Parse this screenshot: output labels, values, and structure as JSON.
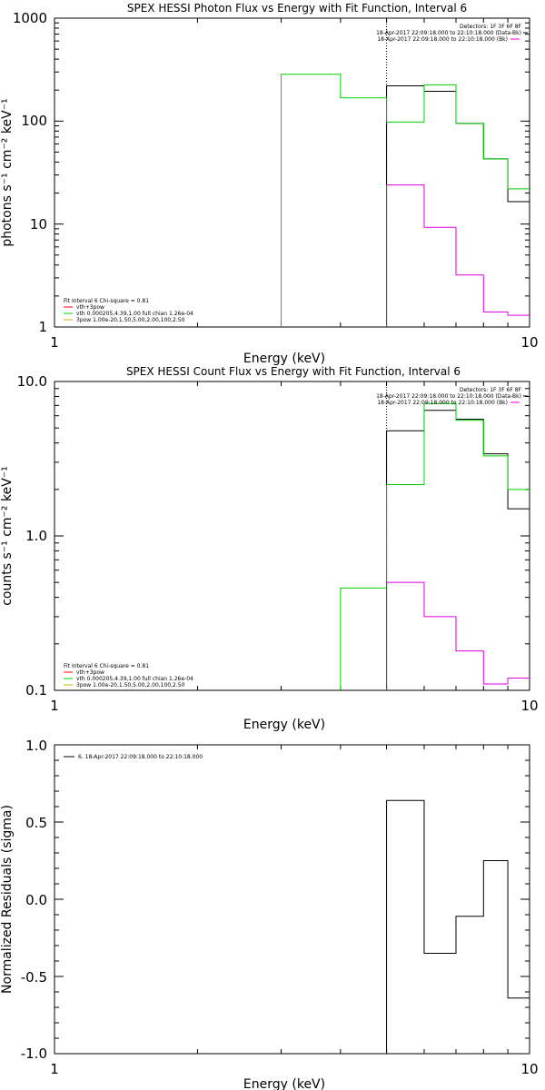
{
  "chart_data": [
    {
      "type": "line",
      "id": "photon",
      "title": "SPEX HESSI Photon Flux vs Energy with Fit Function, Interval 6",
      "xlabel": "Energy (keV)",
      "ylabel": "photons s⁻¹ cm⁻² keV⁻¹",
      "xscale": "log",
      "yscale": "log",
      "xlim": [
        1,
        10
      ],
      "ylim": [
        1,
        1000
      ],
      "xticks": [
        "1",
        "10"
      ],
      "yticks": [
        "1",
        "10",
        "100",
        "1000"
      ],
      "bin_edges": [
        3,
        4,
        5,
        6,
        7,
        8,
        9,
        10
      ],
      "vline": 5,
      "series": [
        {
          "color": "#000000",
          "values": [
            null,
            null,
            220,
            195,
            95,
            43,
            16.5
          ]
        },
        {
          "color": "#00d000",
          "values": [
            285,
            168,
            98,
            225,
            95,
            43,
            22
          ]
        },
        {
          "color": "#e000e0",
          "values": [
            null,
            null,
            24,
            9.3,
            3.2,
            1.4,
            1.3
          ]
        }
      ],
      "legend": [
        {
          "text": "Fit Interval 6   Chi-square = 0.81",
          "color": "#000000"
        },
        {
          "text": "vth+3pow",
          "color": "#ff0000"
        },
        {
          "text": "vth 0.000205,4.39,1.00   full chian 1.26e-04",
          "color": "#00d000"
        },
        {
          "text": "3pow 1.00e-20,1.50,5.00,2.00,100,2.50",
          "color": "#d0b000"
        }
      ],
      "info": [
        {
          "text": "Detectors: 1F 3F 6F 8F",
          "color": "#000000"
        },
        {
          "text": "18-Apr-2017 22:09:18.000 to 22:10:18.000 (Data-Bk)",
          "color": "#000000"
        },
        {
          "text": "18-Apr-2017 22:09:18.000 to 22:10:18.000 (Bk)",
          "color": "#e000e0"
        }
      ]
    },
    {
      "type": "line",
      "id": "count",
      "title": "SPEX HESSI Count Flux vs Energy with Fit Function, Interval 6",
      "xlabel": "Energy (keV)",
      "ylabel": "counts s⁻¹ cm⁻² keV⁻¹",
      "xscale": "log",
      "yscale": "log",
      "xlim": [
        1,
        10
      ],
      "ylim": [
        0.1,
        10
      ],
      "xticks": [
        "1",
        "10"
      ],
      "yticks": [
        "0.1",
        "1.0",
        "10.0"
      ],
      "bin_edges": [
        3,
        4,
        5,
        6,
        7,
        8,
        9,
        10
      ],
      "vline": 5,
      "series": [
        {
          "color": "#000000",
          "values": [
            null,
            null,
            4.8,
            6.5,
            5.7,
            3.4,
            1.5
          ]
        },
        {
          "color": "#00d000",
          "values": [
            null,
            0.46,
            2.15,
            7.2,
            5.6,
            3.3,
            2.0
          ]
        },
        {
          "color": "#e000e0",
          "values": [
            null,
            null,
            0.5,
            0.3,
            0.18,
            0.11,
            0.12
          ]
        }
      ],
      "legend": [
        {
          "text": "Fit Interval 6   Chi-square = 0.81",
          "color": "#000000"
        },
        {
          "text": "vth+3pow",
          "color": "#ff0000"
        },
        {
          "text": "vth 0.000205,4.39,1.00   full chian 1.26e-04",
          "color": "#00d000"
        },
        {
          "text": "3pow 1.00e-20,1.50,5.00,2.00,100,2.50",
          "color": "#d0b000"
        }
      ],
      "info": [
        {
          "text": "Detectors: 1F 3F 6F 8F",
          "color": "#000000"
        },
        {
          "text": "18-Apr-2017 22:09:18.000 to 22:10:18.000 (Data-Bk)",
          "color": "#000000"
        },
        {
          "text": "18-Apr-2017 22:09:18.000 to 22:10:18.000 (Bk)",
          "color": "#e000e0"
        }
      ]
    },
    {
      "type": "line",
      "id": "residuals",
      "title": "",
      "xlabel": "Energy (keV)",
      "ylabel": "Normalized Residuals (sigma)",
      "xscale": "log",
      "yscale": "linear",
      "xlim": [
        1,
        10
      ],
      "ylim": [
        -1,
        1
      ],
      "xticks": [
        "1",
        "10"
      ],
      "yticks": [
        "-1.0",
        "-0.5",
        "0.0",
        "0.5",
        "1.0"
      ],
      "bin_edges": [
        5,
        6,
        7,
        8,
        9,
        10
      ],
      "series": [
        {
          "color": "#000000",
          "values": [
            0.64,
            -0.35,
            -0.11,
            0.25,
            -0.64
          ]
        }
      ],
      "legend": [
        {
          "text": "6. 18-Apr-2017 22:09:18.000 to 22:10:18.000",
          "color": "#000000"
        }
      ],
      "info": []
    }
  ]
}
